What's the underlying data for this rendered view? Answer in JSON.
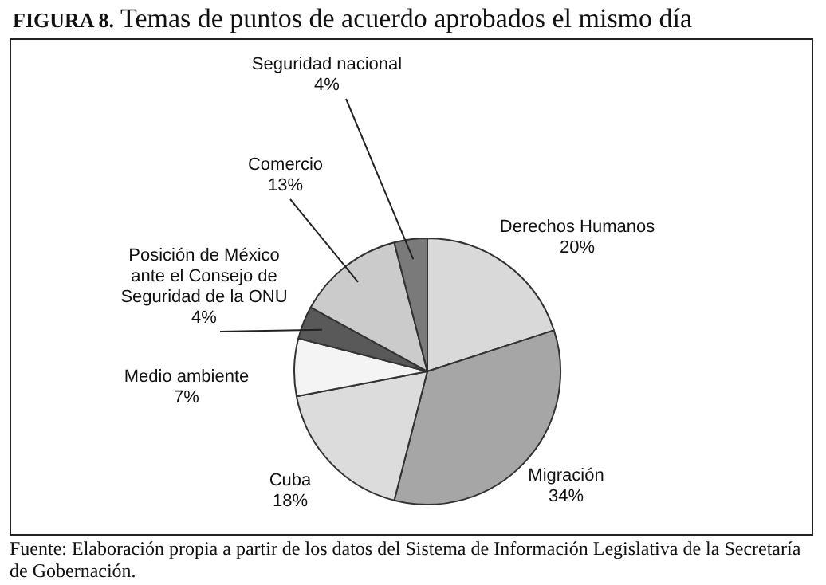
{
  "chart_data": {
    "type": "pie",
    "title": "FIGURA 8. Temas de puntos de acuerdo aprobados el mismo día",
    "categories": [
      "Derechos Humanos",
      "Migración",
      "Cuba",
      "Medio ambiente",
      "Posición de México ante el Consejo de Seguridad de la ONU",
      "Comercio",
      "Seguridad nacional"
    ],
    "values": [
      20,
      34,
      18,
      7,
      4,
      13,
      4
    ],
    "value_labels": [
      "20%",
      "34%",
      "18%",
      "7%",
      "4%",
      "13%",
      "4%"
    ],
    "colors": [
      "#d9d9d9",
      "#a6a6a6",
      "#dcdcdc",
      "#f4f4f4",
      "#595959",
      "#cbcbcb",
      "#7a7a7a"
    ],
    "annotations": [
      "Fuente: Elaboración propia a partir de los datos del Sistema de Información Legislativa de la Secretaría de Gobernación."
    ]
  }
}
